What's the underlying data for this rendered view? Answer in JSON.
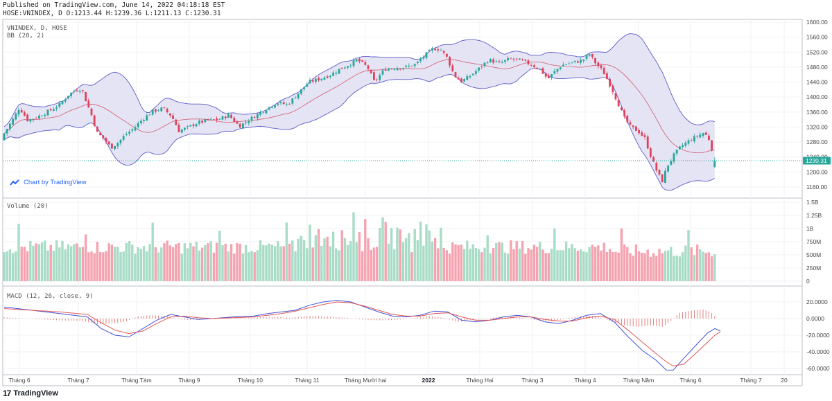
{
  "header": {
    "published": "Published on TradingView.com, June 14, 2022 04:18:18 EST",
    "ohlc": "HOSE:VNINDEX, D O:1213.44 H:1239.36 L:1211.13 C:1230.31"
  },
  "panes": {
    "price_title": "VNINDEX, D, HOSE",
    "bb_title": "BB (20, 2)",
    "volume_title": "Volume (20)",
    "macd_title": "MACD (12, 26, close, 9)"
  },
  "chart_by": "Chart by TradingView",
  "footer_logo": "TradingView",
  "colors": {
    "up": "#26a69a",
    "down": "#e0405b",
    "up_fill": "#a8dcc6",
    "down_fill": "#f5a3b0",
    "bb_band": "#5b5bc9",
    "bb_fill": "#e4e4f4",
    "bb_mid": "#d45a6a",
    "macd_line": "#3f51d8",
    "signal_line": "#e05656",
    "last_price_bg": "#26a69a"
  },
  "chart_data": [
    {
      "type": "candlestick",
      "title": "VNINDEX, D, HOSE",
      "ylim": [
        1140,
        1600
      ],
      "yticks": [
        "1600.00",
        "1560.00",
        "1520.00",
        "1480.00",
        "1440.00",
        "1400.00",
        "1360.00",
        "1320.00",
        "1280.00",
        "1240.00",
        "1200.00",
        "1160.00"
      ],
      "last_price": "1230.31",
      "bollinger": "BB (20, 2)",
      "close_path": [
        [
          0,
          1285
        ],
        [
          10,
          1315
        ],
        [
          20,
          1345
        ],
        [
          28,
          1372
        ],
        [
          40,
          1338
        ],
        [
          55,
          1348
        ],
        [
          70,
          1362
        ],
        [
          85,
          1378
        ],
        [
          98,
          1405
        ],
        [
          108,
          1418
        ],
        [
          118,
          1422
        ],
        [
          125,
          1385
        ],
        [
          132,
          1352
        ],
        [
          140,
          1305
        ],
        [
          150,
          1288
        ],
        [
          160,
          1265
        ],
        [
          170,
          1278
        ],
        [
          180,
          1298
        ],
        [
          192,
          1315
        ],
        [
          205,
          1340
        ],
        [
          220,
          1362
        ],
        [
          235,
          1370
        ],
        [
          248,
          1348
        ],
        [
          258,
          1310
        ],
        [
          270,
          1318
        ],
        [
          285,
          1332
        ],
        [
          300,
          1338
        ],
        [
          315,
          1340
        ],
        [
          330,
          1352
        ],
        [
          345,
          1322
        ],
        [
          358,
          1338
        ],
        [
          370,
          1352
        ],
        [
          385,
          1370
        ],
        [
          400,
          1385
        ],
        [
          415,
          1380
        ],
        [
          430,
          1410
        ],
        [
          445,
          1440
        ],
        [
          460,
          1448
        ],
        [
          475,
          1458
        ],
        [
          490,
          1475
        ],
        [
          505,
          1488
        ],
        [
          515,
          1500
        ],
        [
          530,
          1480
        ],
        [
          540,
          1440
        ],
        [
          555,
          1475
        ],
        [
          570,
          1478
        ],
        [
          585,
          1480
        ],
        [
          600,
          1488
        ],
        [
          612,
          1510
        ],
        [
          625,
          1530
        ],
        [
          635,
          1528
        ],
        [
          645,
          1505
        ],
        [
          655,
          1458
        ],
        [
          665,
          1442
        ],
        [
          675,
          1452
        ],
        [
          690,
          1475
        ],
        [
          705,
          1500
        ],
        [
          720,
          1490
        ],
        [
          735,
          1502
        ],
        [
          750,
          1498
        ],
        [
          765,
          1488
        ],
        [
          780,
          1472
        ],
        [
          790,
          1448
        ],
        [
          800,
          1468
        ],
        [
          810,
          1485
        ],
        [
          825,
          1492
        ],
        [
          840,
          1498
        ],
        [
          850,
          1515
        ],
        [
          860,
          1488
        ],
        [
          870,
          1468
        ],
        [
          880,
          1432
        ],
        [
          890,
          1390
        ],
        [
          900,
          1345
        ],
        [
          910,
          1320
        ],
        [
          920,
          1310
        ],
        [
          930,
          1290
        ],
        [
          940,
          1235
        ],
        [
          948,
          1200
        ],
        [
          955,
          1175
        ],
        [
          962,
          1215
        ],
        [
          972,
          1245
        ],
        [
          982,
          1268
        ],
        [
          995,
          1285
        ],
        [
          1005,
          1295
        ],
        [
          1015,
          1305
        ],
        [
          1022,
          1290
        ],
        [
          1028,
          1255
        ],
        [
          1033,
          1230
        ]
      ]
    },
    {
      "type": "bar",
      "title": "Volume (20)",
      "ylim": [
        0,
        1500
      ],
      "yticks": [
        "1.5B",
        "1.25B",
        "1B",
        "750M",
        "500M",
        "250M",
        "0"
      ]
    },
    {
      "type": "line",
      "title": "MACD (12, 26, close, 9)",
      "ylim": [
        -65,
        27
      ],
      "yticks": [
        "20.0000",
        "0.0000",
        "-20.0000",
        "-40.0000",
        "-60.0000"
      ],
      "macd_path": [
        [
          0,
          14
        ],
        [
          40,
          10
        ],
        [
          80,
          6
        ],
        [
          120,
          2
        ],
        [
          140,
          -12
        ],
        [
          160,
          -20
        ],
        [
          180,
          -22
        ],
        [
          200,
          -12
        ],
        [
          220,
          -2
        ],
        [
          240,
          5
        ],
        [
          260,
          2
        ],
        [
          280,
          -1
        ],
        [
          300,
          0
        ],
        [
          330,
          2
        ],
        [
          360,
          3
        ],
        [
          380,
          6
        ],
        [
          400,
          8
        ],
        [
          420,
          10
        ],
        [
          440,
          16
        ],
        [
          460,
          20
        ],
        [
          480,
          22
        ],
        [
          500,
          20
        ],
        [
          520,
          14
        ],
        [
          540,
          8
        ],
        [
          560,
          3
        ],
        [
          580,
          2
        ],
        [
          600,
          4
        ],
        [
          620,
          9
        ],
        [
          640,
          8
        ],
        [
          660,
          -2
        ],
        [
          680,
          -4
        ],
        [
          700,
          -2
        ],
        [
          720,
          2
        ],
        [
          740,
          4
        ],
        [
          760,
          2
        ],
        [
          780,
          -4
        ],
        [
          800,
          -6
        ],
        [
          820,
          -2
        ],
        [
          840,
          4
        ],
        [
          860,
          6
        ],
        [
          880,
          -4
        ],
        [
          900,
          -22
        ],
        [
          920,
          -38
        ],
        [
          940,
          -50
        ],
        [
          955,
          -62
        ],
        [
          965,
          -62
        ],
        [
          980,
          -48
        ],
        [
          1000,
          -30
        ],
        [
          1015,
          -17
        ],
        [
          1025,
          -12
        ],
        [
          1033,
          -15
        ]
      ],
      "signal_path": [
        [
          0,
          12
        ],
        [
          40,
          10
        ],
        [
          80,
          8
        ],
        [
          120,
          5
        ],
        [
          140,
          -5
        ],
        [
          160,
          -14
        ],
        [
          180,
          -18
        ],
        [
          200,
          -15
        ],
        [
          220,
          -6
        ],
        [
          240,
          2
        ],
        [
          260,
          3
        ],
        [
          280,
          1
        ],
        [
          300,
          0
        ],
        [
          330,
          1
        ],
        [
          360,
          2
        ],
        [
          380,
          4
        ],
        [
          400,
          6
        ],
        [
          420,
          9
        ],
        [
          440,
          13
        ],
        [
          460,
          17
        ],
        [
          480,
          20
        ],
        [
          500,
          19
        ],
        [
          520,
          15
        ],
        [
          540,
          10
        ],
        [
          560,
          5
        ],
        [
          580,
          3
        ],
        [
          600,
          3
        ],
        [
          620,
          6
        ],
        [
          640,
          7
        ],
        [
          660,
          2
        ],
        [
          680,
          -2
        ],
        [
          700,
          -2
        ],
        [
          720,
          0
        ],
        [
          740,
          2
        ],
        [
          760,
          2
        ],
        [
          780,
          -1
        ],
        [
          800,
          -3
        ],
        [
          820,
          -3
        ],
        [
          840,
          1
        ],
        [
          860,
          3
        ],
        [
          880,
          -1
        ],
        [
          900,
          -14
        ],
        [
          920,
          -28
        ],
        [
          940,
          -42
        ],
        [
          955,
          -52
        ],
        [
          965,
          -57
        ],
        [
          980,
          -55
        ],
        [
          1000,
          -40
        ],
        [
          1015,
          -28
        ],
        [
          1025,
          -20
        ],
        [
          1033,
          -16
        ]
      ]
    }
  ],
  "x_axis": {
    "ticks": [
      {
        "label": "Tháng 6",
        "x": 28
      },
      {
        "label": "Tháng 7",
        "x": 113
      },
      {
        "label": "Tháng Tám",
        "x": 197
      },
      {
        "label": "Tháng 9",
        "x": 273
      },
      {
        "label": "Tháng 10",
        "x": 361
      },
      {
        "label": "Tháng 11",
        "x": 443
      },
      {
        "label": "Tháng Mười hai",
        "x": 527
      },
      {
        "label": "2022",
        "x": 618,
        "bold": true
      },
      {
        "label": "Tháng Hai",
        "x": 692
      },
      {
        "label": "Tháng 3",
        "x": 768
      },
      {
        "label": "Tháng 4",
        "x": 844
      },
      {
        "label": "Tháng Năm",
        "x": 921
      },
      {
        "label": "Tháng 6",
        "x": 996
      },
      {
        "label": "Tháng 7",
        "x": 1083
      },
      {
        "label": "20",
        "x": 1131
      }
    ]
  }
}
